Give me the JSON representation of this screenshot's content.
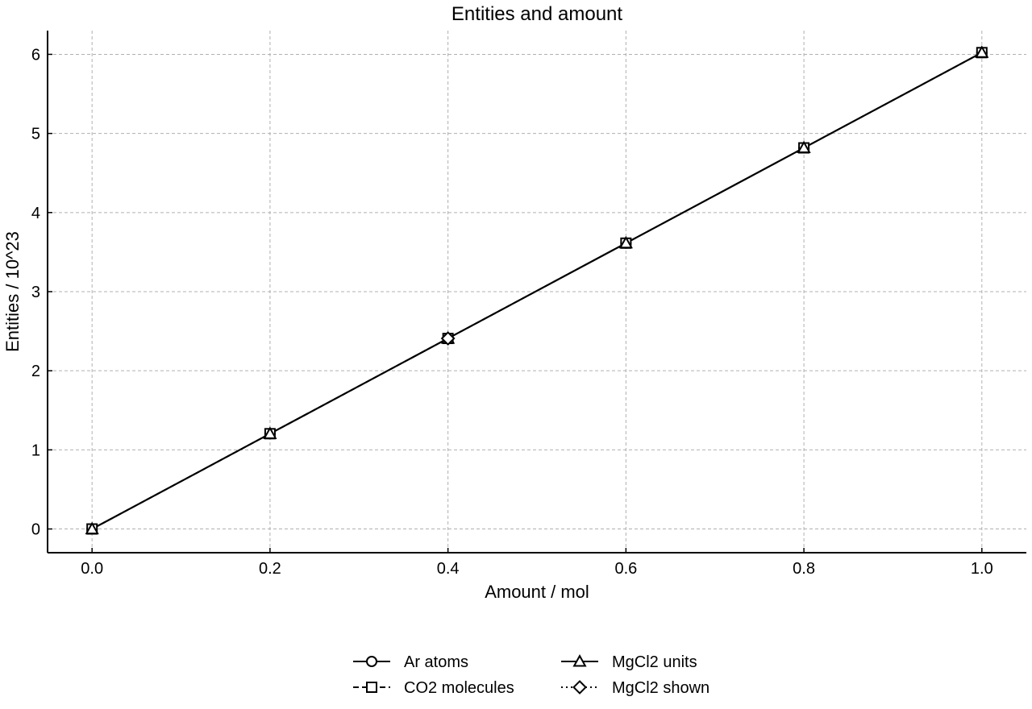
{
  "chart_data": {
    "type": "line",
    "title": "Entities and amount",
    "xlabel": "Amount / mol",
    "ylabel": "Entities / 10^23",
    "xlim": [
      -0.05,
      1.05
    ],
    "ylim": [
      -0.3,
      6.3
    ],
    "xticks": [
      0.0,
      0.2,
      0.4,
      0.6,
      0.8,
      1.0
    ],
    "xtick_labels": [
      "0.0",
      "0.2",
      "0.4",
      "0.6",
      "0.8",
      "1.0"
    ],
    "yticks": [
      0,
      1,
      2,
      3,
      4,
      5,
      6
    ],
    "ytick_labels": [
      "0",
      "1",
      "2",
      "3",
      "4",
      "5",
      "6"
    ],
    "grid": true,
    "legend_position": "bottom-center",
    "series": [
      {
        "name": "Ar atoms",
        "marker": "circle",
        "linestyle": "solid",
        "color": "#000000",
        "x": [
          0.0,
          0.2,
          0.4,
          0.6,
          0.8,
          1.0
        ],
        "y": [
          0.0,
          1.2044,
          2.4088,
          3.6133,
          4.8177,
          6.0221
        ]
      },
      {
        "name": "CO2 molecules",
        "marker": "square",
        "linestyle": "dashed",
        "color": "#000000",
        "x": [
          0.0,
          0.2,
          0.4,
          0.6,
          0.8,
          1.0
        ],
        "y": [
          0.0,
          1.2044,
          2.4088,
          3.6133,
          4.8177,
          6.0221
        ]
      },
      {
        "name": "MgCl2 units",
        "marker": "triangle",
        "linestyle": "solid",
        "color": "#000000",
        "x": [
          0.0,
          0.2,
          0.4,
          0.6,
          0.8,
          1.0
        ],
        "y": [
          0.0,
          1.2044,
          2.4088,
          3.6133,
          4.8177,
          6.0221
        ]
      },
      {
        "name": "MgCl2 shown",
        "marker": "diamond",
        "linestyle": "dotted",
        "color": "#000000",
        "x": [
          0.4
        ],
        "y": [
          2.4088
        ]
      }
    ]
  }
}
